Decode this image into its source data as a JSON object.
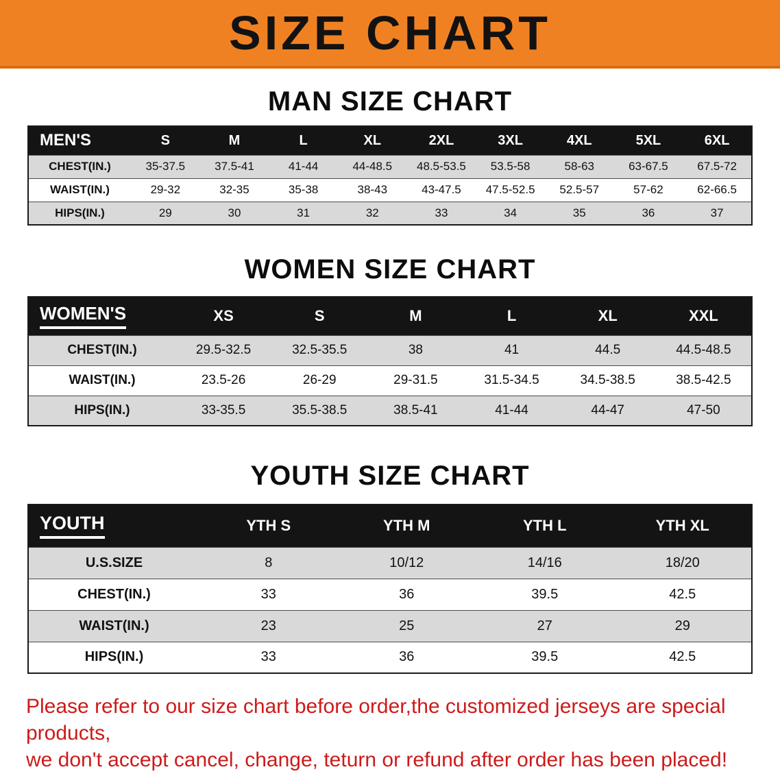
{
  "banner": {
    "title": "SIZE CHART",
    "background_color": "#f08122",
    "text_color": "#121212"
  },
  "sections": [
    {
      "heading": "MAN SIZE CHART",
      "table": {
        "header": [
          "MEN'S",
          "S",
          "M",
          "L",
          "XL",
          "2XL",
          "3XL",
          "4XL",
          "5XL",
          "6XL"
        ],
        "rows": [
          {
            "label": "CHEST(IN.)",
            "values": [
              "35-37.5",
              "37.5-41",
              "41-44",
              "44-48.5",
              "48.5-53.5",
              "53.5-58",
              "58-63",
              "63-67.5",
              "67.5-72"
            ]
          },
          {
            "label": "WAIST(IN.)",
            "values": [
              "29-32",
              "32-35",
              "35-38",
              "38-43",
              "43-47.5",
              "47.5-52.5",
              "52.5-57",
              "57-62",
              "62-66.5"
            ]
          },
          {
            "label": "HIPS(IN.)",
            "values": [
              "29",
              "30",
              "31",
              "32",
              "33",
              "34",
              "35",
              "36",
              "37"
            ]
          }
        ]
      }
    },
    {
      "heading": "WOMEN SIZE CHART",
      "table": {
        "header": [
          "WOMEN'S",
          "XS",
          "S",
          "M",
          "L",
          "XL",
          "XXL"
        ],
        "rows": [
          {
            "label": "CHEST(IN.)",
            "values": [
              "29.5-32.5",
              "32.5-35.5",
              "38",
              "41",
              "44.5",
              "44.5-48.5"
            ]
          },
          {
            "label": "WAIST(IN.)",
            "values": [
              "23.5-26",
              "26-29",
              "29-31.5",
              "31.5-34.5",
              "34.5-38.5",
              "38.5-42.5"
            ]
          },
          {
            "label": "HIPS(IN.)",
            "values": [
              "33-35.5",
              "35.5-38.5",
              "38.5-41",
              "41-44",
              "44-47",
              "47-50"
            ]
          }
        ]
      }
    },
    {
      "heading": "YOUTH SIZE CHART",
      "table": {
        "header": [
          "YOUTH",
          "YTH S",
          "YTH M",
          "YTH L",
          "YTH XL"
        ],
        "rows": [
          {
            "label": "U.S.SIZE",
            "values": [
              "8",
              "10/12",
              "14/16",
              "18/20"
            ]
          },
          {
            "label": "CHEST(IN.)",
            "values": [
              "33",
              "36",
              "39.5",
              "42.5"
            ]
          },
          {
            "label": "WAIST(IN.)",
            "values": [
              "23",
              "25",
              "27",
              "29"
            ]
          },
          {
            "label": "HIPS(IN.)",
            "values": [
              "33",
              "36",
              "39.5",
              "42.5"
            ]
          }
        ]
      }
    }
  ],
  "disclaimer": {
    "text_color": "#cd1a1a",
    "line1": "Please refer to our size chart before order,the customized jerseys are special products,",
    "line2": "we don't accept cancel, change, teturn or refund after order has been placed!"
  }
}
